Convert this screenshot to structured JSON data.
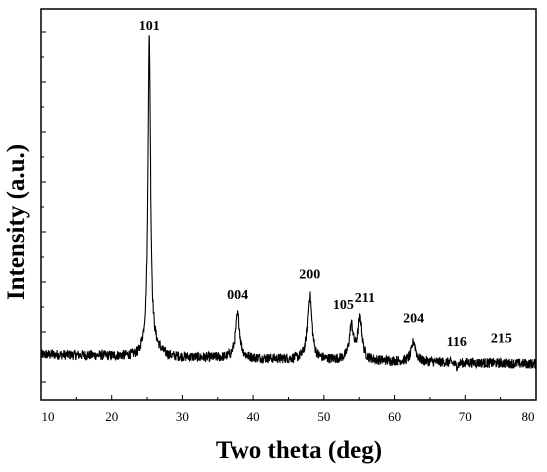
{
  "chart_data": {
    "type": "line",
    "xlabel": "Two theta (deg)",
    "ylabel": "Intensity (a.u.)",
    "xlim": [
      10,
      80
    ],
    "x_ticks": [
      "10",
      "20",
      "30",
      "40",
      "50",
      "60",
      "70",
      "80"
    ],
    "y_tick_labels": false,
    "grid": false,
    "legend": "none",
    "line_color": "#000000",
    "baseline_intensity": 0.07,
    "peaks": [
      {
        "label": "101",
        "x": 25.3,
        "y": 1.0
      },
      {
        "label": "004",
        "x": 37.8,
        "y": 0.2
      },
      {
        "label": "200",
        "x": 48.0,
        "y": 0.26
      },
      {
        "label": "105",
        "x": 53.9,
        "y": 0.17
      },
      {
        "label": "211",
        "x": 55.1,
        "y": 0.19
      },
      {
        "label": "204",
        "x": 62.7,
        "y": 0.13
      },
      {
        "label": "116",
        "x": 68.8,
        "y": 0.06
      },
      {
        "label": "215",
        "x": 75.1,
        "y": 0.07
      }
    ]
  }
}
